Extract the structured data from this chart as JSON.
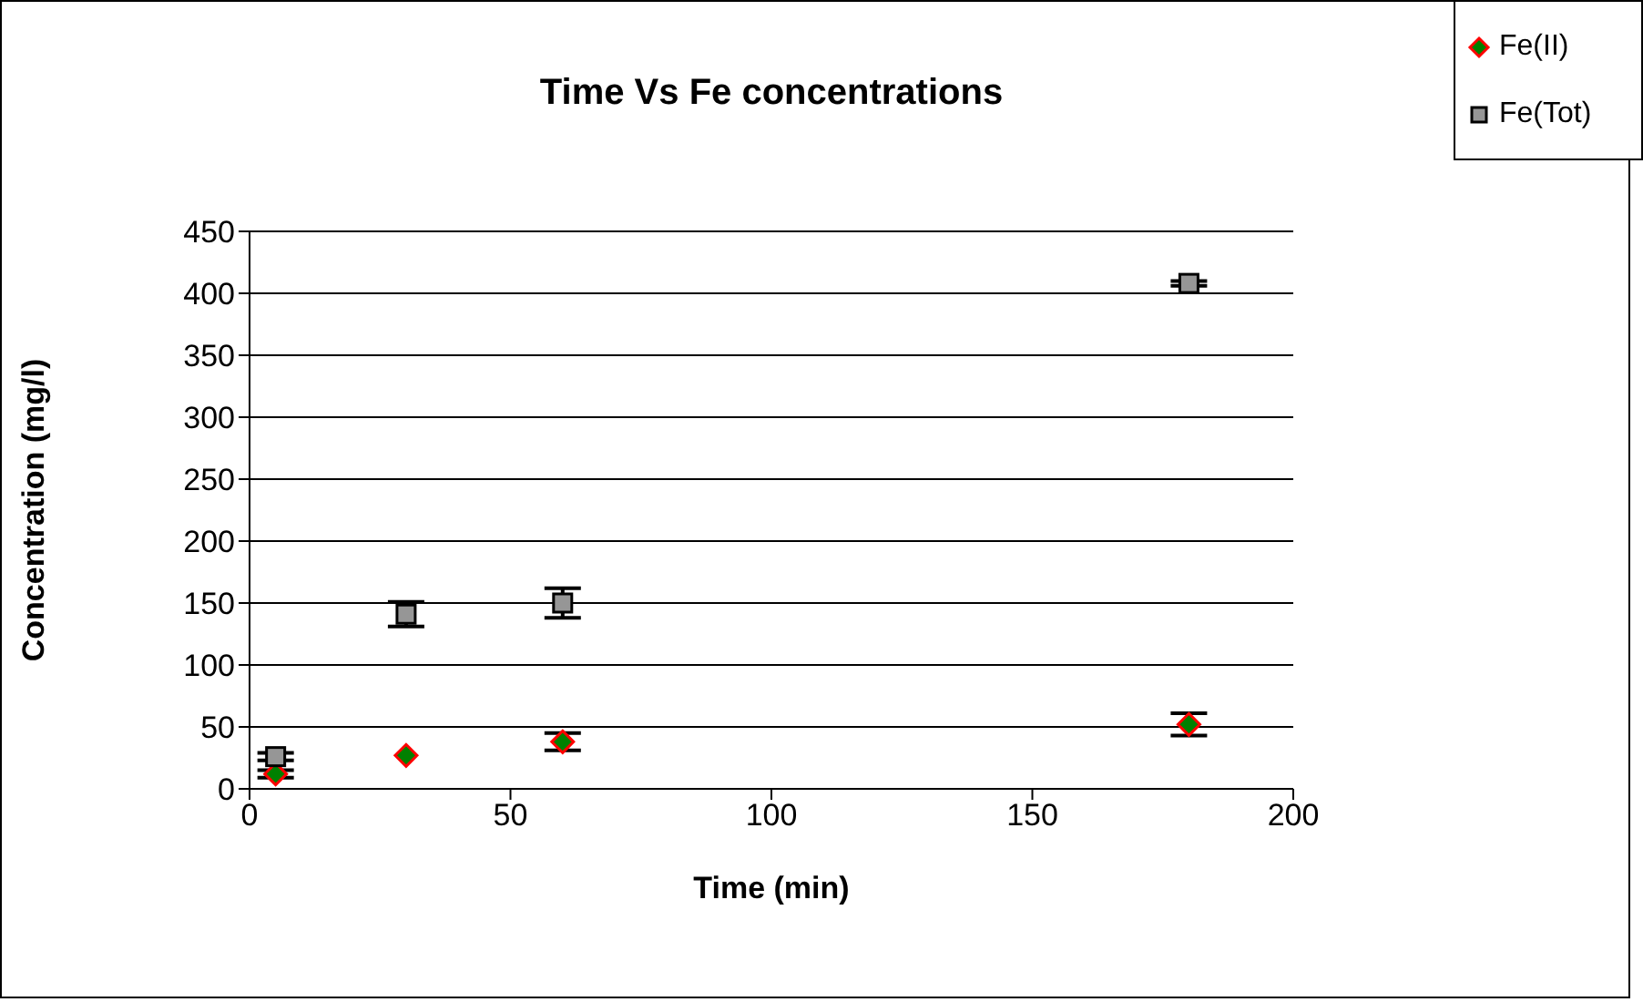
{
  "chart_data": {
    "type": "scatter",
    "title": "Time Vs Fe concentrations",
    "xlabel": "Time (min)",
    "ylabel": "Concentration (mg/l)",
    "x": [
      5,
      30,
      60,
      180
    ],
    "series": [
      {
        "name": "Fe(II)",
        "color": "#008000",
        "marker": "diamond",
        "values": [
          12,
          27,
          38,
          52
        ],
        "errors": [
          3,
          null,
          7,
          9
        ]
      },
      {
        "name": "Fe(Tot)",
        "color": "#969696",
        "marker": "square",
        "values": [
          26,
          141,
          150,
          408
        ],
        "errors": [
          3,
          10,
          12,
          2
        ]
      }
    ],
    "xlim": [
      0,
      200
    ],
    "xticks": [
      0,
      50,
      100,
      150,
      200
    ],
    "ylim": [
      0,
      450
    ],
    "yticks": [
      0,
      50,
      100,
      150,
      200,
      250,
      300,
      350,
      400,
      450
    ],
    "grid": "y",
    "legend": "top right"
  }
}
